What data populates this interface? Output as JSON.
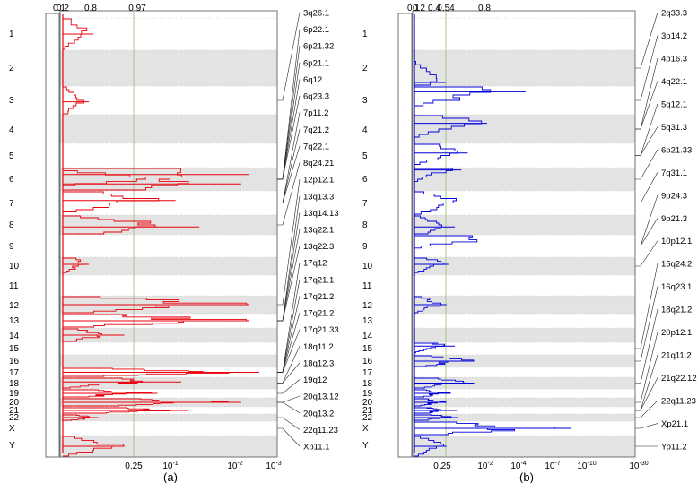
{
  "chart_data": [
    {
      "panel": "a",
      "type": "line",
      "caption": "(a)",
      "color": "#e8000b",
      "x_scale": "log-q-value (inverted)",
      "top_ticks": [
        "0.1",
        "0.2",
        "0.8",
        "0.97"
      ],
      "bottom_ticks": [
        {
          "label": "0.25",
          "value": 0.25
        },
        {
          "label": "10",
          "sup": "-1",
          "value": 0.1
        },
        {
          "label": "10",
          "sup": "-2",
          "value": 0.01
        },
        {
          "label": "10",
          "sup": "-3",
          "value": 0.001
        }
      ],
      "threshold": 0.25,
      "chromosomes": [
        "1",
        "2",
        "3",
        "4",
        "5",
        "6",
        "7",
        "8",
        "9",
        "10",
        "11",
        "12",
        "13",
        "14",
        "15",
        "16",
        "17",
        "18",
        "19",
        "20",
        "21",
        "22",
        "X",
        "Y"
      ],
      "peaks": [
        {
          "chr": "1",
          "pos": 0.5,
          "q": 0.55
        },
        {
          "chr": "3",
          "pos": 0.55,
          "q": 0.6
        },
        {
          "chr": "6",
          "pos": 0.3,
          "q": 0.003
        },
        {
          "chr": "6",
          "pos": 0.7,
          "q": 0.004
        },
        {
          "chr": "7",
          "pos": 0.4,
          "q": 0.05
        },
        {
          "chr": "8",
          "pos": 0.6,
          "q": 0.02
        },
        {
          "chr": "10",
          "pos": 0.4,
          "q": 0.6
        },
        {
          "chr": "12",
          "pos": 0.5,
          "q": 0.003
        },
        {
          "chr": "13",
          "pos": 0.5,
          "q": 0.003
        },
        {
          "chr": "14",
          "pos": 0.5,
          "q": 0.3
        },
        {
          "chr": "17",
          "pos": 0.5,
          "q": 0.002
        },
        {
          "chr": "18",
          "pos": 0.4,
          "q": 0.04
        },
        {
          "chr": "19",
          "pos": 0.5,
          "q": 0.1
        },
        {
          "chr": "20",
          "pos": 0.5,
          "q": 0.004
        },
        {
          "chr": "21",
          "pos": 0.5,
          "q": 0.03
        },
        {
          "chr": "22",
          "pos": 0.5,
          "q": 0.5
        },
        {
          "chr": "Y",
          "pos": 0.5,
          "q": 0.3
        }
      ],
      "annotations": [
        {
          "text": "3q26.1",
          "chr": "3"
        },
        {
          "text": "6p22.1",
          "chr": "6"
        },
        {
          "text": "6p21.32",
          "chr": "6"
        },
        {
          "text": "6p21.1",
          "chr": "6"
        },
        {
          "text": "6q12",
          "chr": "6"
        },
        {
          "text": "6q23.3",
          "chr": "6"
        },
        {
          "text": "7p11.2",
          "chr": "7"
        },
        {
          "text": "7q21.2",
          "chr": "7"
        },
        {
          "text": "7q22.1",
          "chr": "7"
        },
        {
          "text": "8q24.21",
          "chr": "8"
        },
        {
          "text": "12p12.1",
          "chr": "12"
        },
        {
          "text": "13q13.3",
          "chr": "13"
        },
        {
          "text": "13q14.13",
          "chr": "13"
        },
        {
          "text": "13q22.1",
          "chr": "13"
        },
        {
          "text": "13q22.3",
          "chr": "13"
        },
        {
          "text": "17q12",
          "chr": "17"
        },
        {
          "text": "17q21.1",
          "chr": "17"
        },
        {
          "text": "17q21.2",
          "chr": "17"
        },
        {
          "text": "17q21.2",
          "chr": "17"
        },
        {
          "text": "17q21.33",
          "chr": "17"
        },
        {
          "text": "18q11.2",
          "chr": "18"
        },
        {
          "text": "18q12.3",
          "chr": "18"
        },
        {
          "text": "19q12",
          "chr": "19"
        },
        {
          "text": "20q13.12",
          "chr": "20"
        },
        {
          "text": "20q13.2",
          "chr": "20"
        },
        {
          "text": "22q11.23",
          "chr": "22"
        },
        {
          "text": "Xp11.1",
          "chr": "X"
        }
      ]
    },
    {
      "panel": "b",
      "type": "line",
      "caption": "(b)",
      "color": "#0000dd",
      "x_scale": "log-q-value (inverted)",
      "top_ticks": [
        "0.1",
        "0.2",
        "0.4",
        "0.54",
        "0.8"
      ],
      "bottom_ticks": [
        {
          "label": "0.25",
          "value": 0.25
        },
        {
          "label": "10",
          "sup": "-2",
          "value": 0.01
        },
        {
          "label": "10",
          "sup": "-4",
          "value": 0.0001
        },
        {
          "label": "10",
          "sup": "-7",
          "value": 1e-07
        },
        {
          "label": "10",
          "sup": "-10",
          "value": 1e-10
        },
        {
          "label": "10",
          "sup": "-30",
          "value": 1e-30
        }
      ],
      "threshold": 0.25,
      "chromosomes": [
        "1",
        "2",
        "3",
        "4",
        "5",
        "6",
        "7",
        "8",
        "9",
        "10",
        "11",
        "12",
        "13",
        "14",
        "15",
        "16",
        "17",
        "18",
        "19",
        "20",
        "21",
        "22",
        "X",
        "Y"
      ],
      "peaks": [
        {
          "chr": "2",
          "pos": 0.9,
          "q": 0.25
        },
        {
          "chr": "3",
          "pos": 0.2,
          "q": 1e-13
        },
        {
          "chr": "4",
          "pos": 0.3,
          "q": 1e-07
        },
        {
          "chr": "5",
          "pos": 0.4,
          "q": 0.0001
        },
        {
          "chr": "6",
          "pos": 0.1,
          "q": 0.001
        },
        {
          "chr": "7",
          "pos": 0.5,
          "q": 0.0001
        },
        {
          "chr": "8",
          "pos": 0.6,
          "q": 0.01
        },
        {
          "chr": "9",
          "pos": 0.1,
          "q": 1e-12
        },
        {
          "chr": "10",
          "pos": 0.4,
          "q": 0.1
        },
        {
          "chr": "12",
          "pos": 0.5,
          "q": 0.2
        },
        {
          "chr": "15",
          "pos": 0.3,
          "q": 0.01
        },
        {
          "chr": "16",
          "pos": 0.5,
          "q": 1e-05
        },
        {
          "chr": "18",
          "pos": 0.5,
          "q": 1e-05
        },
        {
          "chr": "19",
          "pos": 0.5,
          "q": 0.05
        },
        {
          "chr": "20",
          "pos": 0.5,
          "q": 0.2
        },
        {
          "chr": "21",
          "pos": 0.5,
          "q": 0.005
        },
        {
          "chr": "22",
          "pos": 0.5,
          "q": 0.003
        },
        {
          "chr": "X",
          "pos": 0.5,
          "q": 1e-20
        },
        {
          "chr": "Y",
          "pos": 0.5,
          "q": 0.2
        }
      ],
      "annotations": [
        {
          "text": "2q33.3",
          "chr": "2"
        },
        {
          "text": "3p14.2",
          "chr": "3"
        },
        {
          "text": "4p16.3",
          "chr": "4"
        },
        {
          "text": "4q22.1",
          "chr": "4"
        },
        {
          "text": "5q12.1",
          "chr": "5"
        },
        {
          "text": "5q31.3",
          "chr": "5"
        },
        {
          "text": "6p21.33",
          "chr": "6"
        },
        {
          "text": "7q31.1",
          "chr": "7"
        },
        {
          "text": "9p24.3",
          "chr": "9"
        },
        {
          "text": "9p21.3",
          "chr": "9"
        },
        {
          "text": "10p12.1",
          "chr": "10"
        },
        {
          "text": "15q24.2",
          "chr": "15"
        },
        {
          "text": "16q23.1",
          "chr": "16"
        },
        {
          "text": "18q21.2",
          "chr": "18"
        },
        {
          "text": "20p12.1",
          "chr": "20"
        },
        {
          "text": "21q11.2",
          "chr": "21"
        },
        {
          "text": "21q22.12",
          "chr": "21"
        },
        {
          "text": "22q11.23",
          "chr": "22"
        },
        {
          "text": "Xp21.1",
          "chr": "X"
        },
        {
          "text": "Yp11.2",
          "chr": "Y"
        }
      ]
    }
  ]
}
